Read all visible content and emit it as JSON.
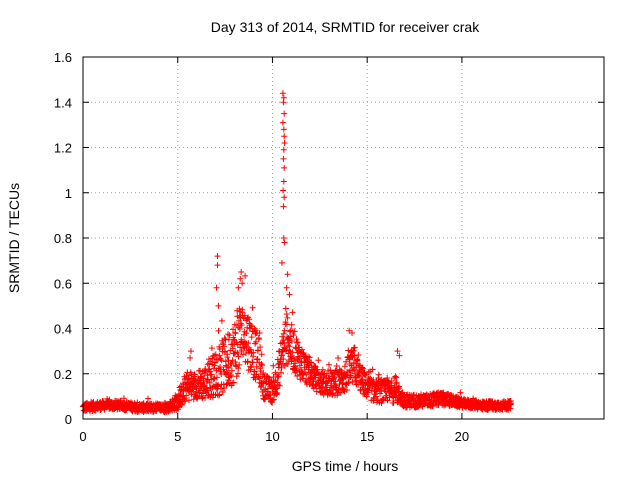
{
  "chart_data": {
    "type": "scatter",
    "title": "Day 313 of 2014, SRMTID for receiver crak",
    "xlabel": "GPS time / hours",
    "ylabel": "SRMTID / TECUs",
    "xlim": [
      0,
      27.5
    ],
    "ylim": [
      0,
      1.6
    ],
    "xticks": [
      0,
      5,
      10,
      15,
      20
    ],
    "yticks": [
      0,
      0.2,
      0.4,
      0.6,
      0.8,
      1,
      1.2,
      1.4,
      1.6
    ],
    "xtick_labels": [
      "0",
      "5",
      "10",
      "15",
      "20"
    ],
    "ytick_labels": [
      "0",
      "0.2",
      "0.4",
      "0.6",
      "0.8",
      "1",
      "1.2",
      "1.4",
      "1.6"
    ],
    "grid": true,
    "marker": "+",
    "color": "#ff0000",
    "series": [
      {
        "name": "crak",
        "envelope": {
          "x": [
            0,
            1,
            2,
            3,
            4,
            4.5,
            5,
            5.5,
            6,
            6.5,
            7,
            7.2,
            7.5,
            8,
            8.3,
            8.5,
            8.8,
            9,
            9.3,
            9.5,
            10,
            10.3,
            10.5,
            10.7,
            10.8,
            11,
            11.5,
            12,
            12.5,
            13,
            13.5,
            14,
            14.3,
            14.5,
            15,
            15.5,
            16,
            16.5,
            17,
            18,
            19,
            20,
            21,
            22,
            22.6
          ],
          "median": [
            0.05,
            0.06,
            0.06,
            0.05,
            0.05,
            0.05,
            0.08,
            0.14,
            0.15,
            0.16,
            0.2,
            0.22,
            0.24,
            0.3,
            0.36,
            0.38,
            0.34,
            0.3,
            0.26,
            0.15,
            0.12,
            0.2,
            0.28,
            0.34,
            0.36,
            0.32,
            0.25,
            0.2,
            0.16,
            0.15,
            0.16,
            0.2,
            0.24,
            0.2,
            0.14,
            0.12,
            0.12,
            0.12,
            0.08,
            0.08,
            0.09,
            0.07,
            0.06,
            0.06,
            0.06
          ],
          "spread": [
            0.02,
            0.02,
            0.02,
            0.02,
            0.02,
            0.02,
            0.04,
            0.06,
            0.06,
            0.08,
            0.1,
            0.12,
            0.12,
            0.14,
            0.14,
            0.14,
            0.13,
            0.12,
            0.1,
            0.06,
            0.05,
            0.08,
            0.1,
            0.12,
            0.12,
            0.1,
            0.08,
            0.06,
            0.05,
            0.05,
            0.06,
            0.08,
            0.08,
            0.07,
            0.05,
            0.05,
            0.05,
            0.05,
            0.03,
            0.03,
            0.03,
            0.02,
            0.02,
            0.02,
            0.02
          ]
        },
        "peaks": [
          {
            "x": 7.1,
            "y": 0.72
          },
          {
            "x": 7.1,
            "y": 0.68
          },
          {
            "x": 7.05,
            "y": 0.58
          },
          {
            "x": 7.15,
            "y": 0.5
          },
          {
            "x": 8.35,
            "y": 0.65
          },
          {
            "x": 8.3,
            "y": 0.62
          },
          {
            "x": 8.4,
            "y": 0.6
          },
          {
            "x": 8.2,
            "y": 0.58
          },
          {
            "x": 10.55,
            "y": 1.44
          },
          {
            "x": 10.6,
            "y": 1.42
          },
          {
            "x": 10.58,
            "y": 1.4
          },
          {
            "x": 10.62,
            "y": 1.35
          },
          {
            "x": 10.55,
            "y": 1.31
          },
          {
            "x": 10.6,
            "y": 1.28
          },
          {
            "x": 10.62,
            "y": 1.25
          },
          {
            "x": 10.64,
            "y": 1.22
          },
          {
            "x": 10.6,
            "y": 1.19
          },
          {
            "x": 10.58,
            "y": 1.15
          },
          {
            "x": 10.62,
            "y": 1.11
          },
          {
            "x": 10.6,
            "y": 1.05
          },
          {
            "x": 10.56,
            "y": 1.01
          },
          {
            "x": 10.62,
            "y": 0.98
          },
          {
            "x": 10.58,
            "y": 0.94
          },
          {
            "x": 10.6,
            "y": 0.8
          },
          {
            "x": 10.63,
            "y": 0.78
          },
          {
            "x": 10.5,
            "y": 0.69
          },
          {
            "x": 10.8,
            "y": 0.64
          },
          {
            "x": 10.75,
            "y": 0.58
          },
          {
            "x": 10.9,
            "y": 0.55
          },
          {
            "x": 14.05,
            "y": 0.39
          },
          {
            "x": 14.2,
            "y": 0.38
          },
          {
            "x": 16.6,
            "y": 0.3
          },
          {
            "x": 16.7,
            "y": 0.28
          },
          {
            "x": 5.7,
            "y": 0.3
          },
          {
            "x": 5.65,
            "y": 0.27
          }
        ]
      }
    ]
  }
}
